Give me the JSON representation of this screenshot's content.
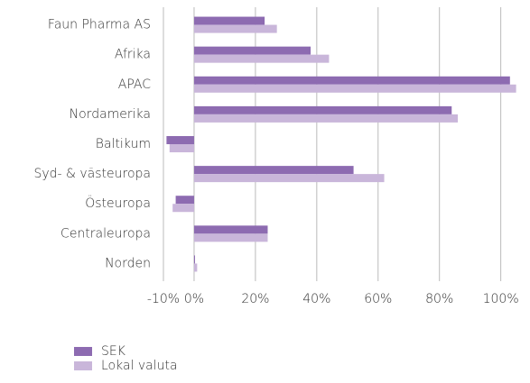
{
  "chart_data": {
    "type": "bar",
    "orientation": "horizontal",
    "categories": [
      "Faun Pharma AS",
      "Afrika",
      "APAC",
      "Nordamerika",
      "Baltikum",
      "Syd- & västeuropa",
      "Östeuropa",
      "Centraleuropa",
      "Norden"
    ],
    "series": [
      {
        "name": "SEK",
        "color": "#8d6bb1",
        "values": [
          23,
          38,
          103,
          84,
          -9,
          52,
          -6,
          24,
          0.3
        ]
      },
      {
        "name": "Lokal valuta",
        "color": "#c9b6da",
        "values": [
          27,
          44,
          105,
          86,
          -8,
          62,
          -7,
          24,
          1
        ]
      }
    ],
    "xlim": [
      -10,
      106
    ],
    "xticks": [
      {
        "value": -10,
        "label": "-10%"
      },
      {
        "value": 0,
        "label": "0%"
      },
      {
        "value": 20,
        "label": "20%"
      },
      {
        "value": 40,
        "label": "40%"
      },
      {
        "value": 60,
        "label": "60%"
      },
      {
        "value": 80,
        "label": "80%"
      },
      {
        "value": 100,
        "label": "100%"
      }
    ],
    "grid": true,
    "legend": "bottom-left"
  }
}
